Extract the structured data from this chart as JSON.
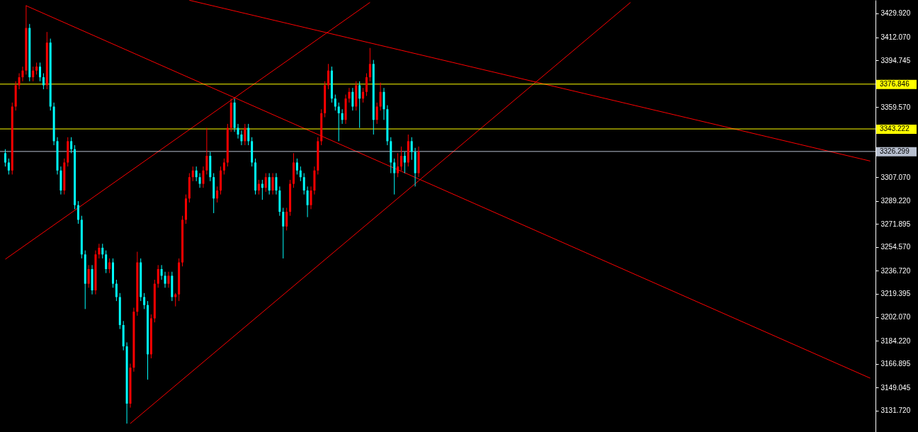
{
  "chart_data": {
    "type": "candlestick",
    "categories": [
      null,
      null,
      null,
      null,
      null,
      null,
      null,
      null,
      null,
      null,
      null,
      null,
      null,
      null,
      null,
      null,
      null,
      null,
      null,
      null,
      null,
      null,
      null,
      null,
      null,
      null,
      null,
      null,
      null,
      null,
      null,
      null,
      null,
      null,
      null,
      null,
      null,
      null,
      null,
      null,
      null,
      null,
      null,
      null,
      null,
      null,
      null,
      null,
      null,
      null,
      null,
      null,
      null,
      null,
      null,
      null,
      null,
      null,
      null,
      null,
      null,
      null,
      null,
      null,
      null,
      null,
      null,
      null,
      null,
      null,
      null,
      null,
      null,
      null,
      null,
      null,
      null,
      null,
      null,
      null,
      null,
      null,
      null,
      null,
      null,
      null,
      null,
      null,
      null,
      null,
      null,
      null,
      null,
      null,
      null,
      null,
      null,
      null,
      null,
      null,
      null,
      null,
      null,
      null,
      null,
      null,
      null,
      null,
      null,
      null,
      null,
      null,
      null,
      null,
      null,
      null,
      null,
      null,
      null,
      null,
      null,
      null,
      null,
      null,
      null,
      null,
      null,
      null,
      null,
      null,
      null,
      null,
      null,
      null,
      null,
      null,
      null,
      null,
      null,
      null,
      null,
      null,
      null,
      null,
      null,
      null,
      null,
      null,
      null,
      null,
      null,
      null,
      null,
      null,
      null,
      null,
      null,
      null,
      null,
      null,
      null,
      null,
      null,
      null,
      null,
      null,
      null,
      null,
      null,
      null,
      null,
      null,
      null,
      null,
      null,
      null,
      null,
      null,
      null,
      null,
      null,
      null,
      null,
      null,
      null,
      null,
      null,
      null,
      null,
      null,
      null,
      null,
      null,
      null,
      null,
      null,
      null,
      null,
      null,
      null,
      null,
      null,
      null,
      null,
      null,
      null,
      null,
      null,
      null,
      null,
      null,
      null,
      null,
      null,
      null,
      null,
      null,
      null,
      null,
      null,
      null,
      null,
      null,
      null,
      null,
      null,
      null,
      null,
      null,
      null,
      null,
      null,
      null,
      null,
      null,
      null,
      null,
      null,
      null,
      null,
      null,
      null,
      null,
      null,
      null,
      null,
      null,
      null,
      null,
      null
    ],
    "colors": [
      "#00ffff",
      "#00ffff",
      "#ff0000",
      "#ff0000",
      "#ff0000",
      "#ff0000",
      "#ff0000",
      "#00ffff",
      "#ff0000",
      "#ff0000",
      "#00ffff",
      "#00ffff",
      "#ff0000",
      "#00ffff",
      "#00ffff",
      "#00ffff",
      "#00ffff",
      "#ff0000",
      "#ff0000",
      "#00ffff",
      "#00ffff",
      "#00ffff",
      "#00ffff",
      "#00ffff",
      "#ff0000",
      "#00ffff",
      "#ff0000",
      "#ff0000",
      "#00ffff",
      "#00ffff",
      "#ff0000",
      "#00ffff",
      "#00ffff",
      "#00ffff",
      "#00ffff",
      "#00ffff",
      "#ff0000",
      "#ff0000",
      "#ff0000",
      "#00ffff",
      "#00ffff",
      "#00ffff",
      "#ff0000",
      "#ff0000",
      "#ff0000",
      "#00ffff",
      "#00ffff",
      "#ff0000",
      "#00ffff",
      "#ff0000",
      "#ff0000",
      "#ff0000",
      "#ff0000",
      "#ff0000",
      "#ff0000",
      "#00ffff",
      "#00ffff",
      "#ff0000",
      "#ff0000",
      "#00ffff",
      "#00ffff",
      "#ff0000",
      "#ff0000",
      "#ff0000",
      "#ff0000",
      "#ff0000",
      "#00ffff",
      "#00ffff",
      "#00ffff",
      "#ff0000",
      "#00ffff",
      "#00ffff",
      "#00ffff",
      "#ff0000",
      "#00ffff",
      "#ff0000",
      "#00ffff",
      "#ff0000",
      "#00ffff",
      "#00ffff",
      "#00ffff",
      "#ff0000",
      "#ff0000",
      "#ff0000",
      "#00ffff",
      "#00ffff",
      "#00ffff",
      "#00ffff",
      "#ff0000",
      "#ff0000",
      "#ff0000",
      "#ff0000",
      "#ff0000",
      "#ff0000",
      "#00ffff",
      "#00ffff",
      "#00ffff",
      "#00ffff",
      "#ff0000",
      "#ff0000",
      "#00ffff",
      "#ff0000",
      "#00ffff",
      "#ff0000",
      "#ff0000",
      "#ff0000",
      "#00ffff",
      "#ff0000",
      "#ff0000",
      "#00ffff",
      "#00ffff",
      "#00ffff",
      "#00ffff",
      "#ff0000",
      "#ff0000",
      "#00ffff",
      "#ff0000",
      "#00ffff",
      "#00ffff",
      "#ff0000",
      null,
      null,
      null,
      null,
      null,
      null,
      null,
      null,
      null,
      null,
      null,
      null,
      null,
      null,
      null,
      null,
      null,
      null,
      null,
      null,
      null,
      null,
      null,
      null,
      null,
      null,
      null,
      null,
      null,
      null,
      null,
      null,
      null,
      null,
      null,
      null,
      null,
      null,
      null,
      null,
      null,
      null,
      null,
      null,
      null,
      null,
      null,
      null,
      null,
      null,
      null,
      null,
      null,
      null,
      null,
      null,
      null,
      null,
      null,
      null,
      null,
      null,
      null,
      null,
      null,
      null,
      null,
      null,
      null,
      null,
      null,
      null,
      null,
      null,
      null,
      null,
      null,
      null,
      null,
      null,
      null,
      null,
      null,
      null,
      null,
      null,
      null,
      null,
      null,
      null,
      null,
      null,
      null,
      null,
      null,
      null,
      null,
      null,
      null,
      null,
      null,
      null,
      null,
      null,
      null,
      null,
      null,
      null,
      null,
      null,
      null,
      null,
      null,
      null,
      null,
      null,
      null,
      null,
      null,
      null,
      null,
      null,
      null,
      null,
      null,
      null,
      null,
      null,
      null,
      null
    ],
    "ohlc": [
      [
        3325,
        3328,
        3315,
        3318
      ],
      [
        3318,
        3321,
        3309,
        3312
      ],
      [
        3312,
        3363,
        3309,
        3360
      ],
      [
        3360,
        3379,
        3357,
        3376
      ],
      [
        3376,
        3385,
        3373,
        3382
      ],
      [
        3382,
        3390,
        3379,
        3387
      ],
      [
        3387,
        3436,
        3384,
        3419
      ],
      [
        3419,
        3422,
        3379,
        3382
      ],
      [
        3382,
        3390,
        3379,
        3387
      ],
      [
        3387,
        3393,
        3384,
        3390
      ],
      [
        3390,
        3393,
        3379,
        3382
      ],
      [
        3382,
        3385,
        3373,
        3376
      ],
      [
        3376,
        3416,
        3373,
        3408
      ],
      [
        3408,
        3411,
        3357,
        3360
      ],
      [
        3360,
        3363,
        3331,
        3334
      ],
      [
        3334,
        3337,
        3309,
        3312
      ],
      [
        3312,
        3315,
        3294,
        3297
      ],
      [
        3297,
        3321,
        3294,
        3318
      ],
      [
        3318,
        3337,
        3315,
        3334
      ],
      [
        3334,
        3337,
        3325,
        3328
      ],
      [
        3328,
        3331,
        3283,
        3286
      ],
      [
        3286,
        3289,
        3272,
        3275
      ],
      [
        3275,
        3278,
        3246,
        3249
      ],
      [
        3249,
        3252,
        3208,
        3227
      ],
      [
        3227,
        3241,
        3224,
        3238
      ],
      [
        3238,
        3241,
        3219,
        3222
      ],
      [
        3222,
        3252,
        3219,
        3249
      ],
      [
        3249,
        3257,
        3246,
        3254
      ],
      [
        3254,
        3257,
        3246,
        3249
      ],
      [
        3249,
        3252,
        3235,
        3238
      ],
      [
        3238,
        3246,
        3235,
        3243
      ],
      [
        3243,
        3246,
        3224,
        3227
      ],
      [
        3227,
        3230,
        3214,
        3217
      ],
      [
        3217,
        3220,
        3193,
        3196
      ],
      [
        3196,
        3199,
        3177,
        3180
      ],
      [
        3180,
        3183,
        3122,
        3137
      ],
      [
        3137,
        3167,
        3134,
        3164
      ],
      [
        3164,
        3209,
        3161,
        3206
      ],
      [
        3206,
        3251,
        3203,
        3243
      ],
      [
        3243,
        3246,
        3214,
        3217
      ],
      [
        3217,
        3220,
        3208,
        3211
      ],
      [
        3211,
        3214,
        3155,
        3174
      ],
      [
        3174,
        3204,
        3171,
        3201
      ],
      [
        3201,
        3230,
        3198,
        3227
      ],
      [
        3227,
        3241,
        3224,
        3238
      ],
      [
        3238,
        3241,
        3230,
        3233
      ],
      [
        3233,
        3236,
        3224,
        3227
      ],
      [
        3227,
        3236,
        3224,
        3233
      ],
      [
        3233,
        3236,
        3214,
        3217
      ],
      [
        3217,
        3220,
        3210,
        3219
      ],
      [
        3219,
        3246,
        3214,
        3243
      ],
      [
        3243,
        3278,
        3240,
        3275
      ],
      [
        3275,
        3294,
        3272,
        3291
      ],
      [
        3291,
        3310,
        3288,
        3307
      ],
      [
        3307,
        3315,
        3304,
        3312
      ],
      [
        3312,
        3315,
        3304,
        3307
      ],
      [
        3307,
        3310,
        3299,
        3302
      ],
      [
        3302,
        3315,
        3299,
        3312
      ],
      [
        3312,
        3344,
        3309,
        3323
      ],
      [
        3323,
        3326,
        3304,
        3307
      ],
      [
        3307,
        3310,
        3280,
        3291
      ],
      [
        3291,
        3300,
        3288,
        3297
      ],
      [
        3297,
        3315,
        3294,
        3312
      ],
      [
        3312,
        3321,
        3309,
        3318
      ],
      [
        3318,
        3347,
        3315,
        3344
      ],
      [
        3344,
        3366,
        3341,
        3363
      ],
      [
        3363,
        3366,
        3341,
        3344
      ],
      [
        3344,
        3347,
        3336,
        3339
      ],
      [
        3339,
        3342,
        3331,
        3334
      ],
      [
        3334,
        3347,
        3331,
        3344
      ],
      [
        3344,
        3347,
        3331,
        3334
      ],
      [
        3334,
        3337,
        3315,
        3318
      ],
      [
        3318,
        3321,
        3294,
        3297
      ],
      [
        3297,
        3305,
        3294,
        3302
      ],
      [
        3302,
        3305,
        3290,
        3299
      ],
      [
        3299,
        3310,
        3296,
        3307
      ],
      [
        3307,
        3310,
        3294,
        3297
      ],
      [
        3297,
        3310,
        3294,
        3307
      ],
      [
        3307,
        3310,
        3294,
        3297
      ],
      [
        3297,
        3300,
        3278,
        3281
      ],
      [
        3281,
        3284,
        3246,
        3270
      ],
      [
        3270,
        3284,
        3267,
        3281
      ],
      [
        3281,
        3305,
        3278,
        3302
      ],
      [
        3302,
        3325,
        3299,
        3318
      ],
      [
        3318,
        3321,
        3309,
        3312
      ],
      [
        3312,
        3315,
        3304,
        3307
      ],
      [
        3307,
        3310,
        3294,
        3297
      ],
      [
        3297,
        3300,
        3277,
        3286
      ],
      [
        3286,
        3300,
        3283,
        3297
      ],
      [
        3297,
        3315,
        3294,
        3312
      ],
      [
        3312,
        3337,
        3309,
        3334
      ],
      [
        3334,
        3358,
        3331,
        3355
      ],
      [
        3355,
        3379,
        3352,
        3376
      ],
      [
        3376,
        3392,
        3373,
        3387
      ],
      [
        3387,
        3390,
        3363,
        3366
      ],
      [
        3366,
        3369,
        3357,
        3360
      ],
      [
        3360,
        3363,
        3334,
        3355
      ],
      [
        3355,
        3358,
        3347,
        3350
      ],
      [
        3350,
        3369,
        3347,
        3366
      ],
      [
        3366,
        3374,
        3363,
        3371
      ],
      [
        3371,
        3374,
        3357,
        3360
      ],
      [
        3360,
        3379,
        3357,
        3376
      ],
      [
        3376,
        3379,
        3344,
        3366
      ],
      [
        3366,
        3374,
        3363,
        3371
      ],
      [
        3371,
        3385,
        3368,
        3382
      ],
      [
        3382,
        3404,
        3379,
        3392
      ],
      [
        3392,
        3395,
        3339,
        3350
      ],
      [
        3350,
        3363,
        3347,
        3360
      ],
      [
        3360,
        3378,
        3357,
        3371
      ],
      [
        3371,
        3374,
        3350,
        3358
      ],
      [
        3358,
        3361,
        3331,
        3334
      ],
      [
        3334,
        3337,
        3310,
        3318
      ],
      [
        3318,
        3321,
        3294,
        3310
      ],
      [
        3310,
        3325,
        3307,
        3315
      ],
      [
        3315,
        3330,
        3312,
        3323
      ],
      [
        3323,
        3326,
        3310,
        3318
      ],
      [
        3318,
        3339,
        3315,
        3334
      ],
      [
        3334,
        3337,
        3320,
        3326
      ],
      [
        3326,
        3329,
        3300,
        3310
      ],
      [
        3310,
        3330,
        3307,
        3326
      ],
      null,
      null,
      null,
      null,
      null,
      null,
      null,
      null,
      null,
      null,
      null,
      null,
      null,
      null,
      null,
      null,
      null,
      null,
      null,
      null,
      null,
      null,
      null,
      null,
      null,
      null,
      null,
      null,
      null,
      null,
      null,
      null,
      null,
      null,
      null,
      null,
      null,
      null,
      null,
      null,
      null,
      null,
      null,
      null,
      null,
      null,
      null,
      null,
      null,
      null,
      null,
      null,
      null,
      null,
      null,
      null,
      null,
      null,
      null,
      null,
      null,
      null,
      null,
      null,
      null,
      null,
      null,
      null,
      null,
      null,
      null,
      null,
      null,
      null,
      null,
      null,
      null,
      null,
      null,
      null,
      null,
      null,
      null,
      null,
      null,
      null,
      null,
      null,
      null,
      null,
      null,
      null,
      null,
      null,
      null,
      null,
      null,
      null,
      null,
      null,
      null,
      null,
      null,
      null,
      null,
      null,
      null,
      null,
      null,
      null,
      null,
      null,
      null,
      null,
      null,
      null,
      null,
      null,
      null,
      null,
      null,
      null,
      null,
      null,
      null,
      null,
      null,
      null,
      null,
      null
    ],
    "series": [
      {
        "type": "line",
        "color": "#ff0000",
        "values": [
          null,
          null,
          null,
          null,
          null,
          null,
          3435.7,
          null,
          null,
          null,
          null,
          null,
          null,
          null,
          null,
          null,
          null,
          null,
          null,
          null,
          null,
          null,
          null,
          null,
          null,
          null,
          null,
          null,
          null,
          null,
          null,
          null,
          null,
          null,
          null,
          null,
          null,
          null,
          null,
          null,
          null,
          null,
          null,
          null,
          null,
          null,
          null,
          null,
          null,
          null,
          null,
          null,
          null,
          null,
          null,
          null,
          null,
          null,
          null,
          null,
          null,
          null,
          null,
          null,
          null,
          null,
          null,
          null,
          null,
          null,
          null,
          null,
          null,
          null,
          null,
          null,
          null,
          null,
          null,
          null,
          null,
          null,
          null,
          null,
          null,
          null,
          null,
          null,
          null,
          null,
          null,
          null,
          null,
          null,
          null,
          null,
          null,
          null,
          null,
          null,
          null,
          null,
          null,
          null,
          null,
          null,
          null,
          null,
          null,
          null,
          null,
          null,
          null,
          null,
          null,
          null,
          null,
          null,
          null,
          null,
          null,
          null,
          null,
          null,
          null,
          null,
          null,
          null,
          null,
          null,
          null,
          null,
          null,
          null,
          null,
          null,
          null,
          null,
          null,
          null,
          null,
          null,
          null,
          null,
          null,
          null,
          null,
          null,
          null,
          null,
          null,
          null,
          null,
          null,
          null,
          null,
          null,
          null,
          null,
          null,
          null,
          null,
          null,
          null,
          null,
          null,
          null,
          null,
          null,
          null,
          null,
          null,
          null,
          null,
          null,
          null,
          null,
          null,
          null,
          null,
          null,
          null,
          null,
          null,
          null,
          null,
          null,
          null,
          null,
          null,
          null,
          null,
          null,
          null,
          null,
          null,
          null,
          null,
          null,
          null,
          null,
          null,
          null,
          null,
          null,
          null,
          null,
          null,
          null,
          null,
          null,
          null,
          null,
          null,
          null,
          null,
          null,
          null,
          null,
          null,
          null,
          null,
          null,
          null,
          null,
          null,
          null,
          null,
          null,
          null,
          null,
          null,
          null,
          null,
          null,
          null,
          null,
          null,
          null,
          null,
          null,
          null,
          null,
          null,
          null,
          null,
          null,
          null,
          null,
          3156.1
        ]
      },
      {
        "type": "line",
        "color": "#ff0000",
        "values": [
          null,
          null,
          null,
          null,
          null,
          null,
          null,
          null,
          null,
          null,
          null,
          null,
          null,
          null,
          null,
          null,
          null,
          null,
          null,
          null,
          null,
          null,
          null,
          null,
          null,
          null,
          null,
          null,
          null,
          null,
          null,
          null,
          null,
          null,
          null,
          null,
          null,
          null,
          null,
          null,
          null,
          null,
          null,
          null,
          null,
          null,
          null,
          null,
          null,
          null,
          null,
          null,
          null,
          3439.8,
          null,
          null,
          null,
          null,
          null,
          null,
          null,
          null,
          null,
          null,
          null,
          null,
          null,
          null,
          null,
          null,
          null,
          null,
          null,
          null,
          null,
          null,
          null,
          null,
          null,
          null,
          null,
          null,
          null,
          null,
          null,
          null,
          null,
          null,
          null,
          null,
          null,
          null,
          null,
          null,
          null,
          null,
          null,
          null,
          null,
          null,
          null,
          null,
          null,
          null,
          null,
          null,
          null,
          null,
          null,
          null,
          null,
          null,
          null,
          null,
          null,
          null,
          null,
          null,
          null,
          null,
          null,
          null,
          null,
          null,
          null,
          null,
          null,
          null,
          null,
          null,
          null,
          null,
          null,
          null,
          null,
          null,
          null,
          null,
          null,
          null,
          null,
          null,
          null,
          null,
          null,
          null,
          null,
          null,
          null,
          null,
          null,
          null,
          null,
          null,
          null,
          null,
          null,
          null,
          null,
          null,
          null,
          null,
          null,
          null,
          null,
          null,
          null,
          null,
          null,
          null,
          null,
          null,
          null,
          null,
          null,
          null,
          null,
          null,
          null,
          null,
          null,
          null,
          null,
          null,
          null,
          null,
          null,
          null,
          null,
          null,
          null,
          null,
          null,
          null,
          null,
          null,
          null,
          null,
          null,
          null,
          null,
          null,
          null,
          null,
          null,
          null,
          null,
          null,
          null,
          null,
          null,
          null,
          null,
          null,
          null,
          null,
          null,
          null,
          null,
          null,
          null,
          null,
          null,
          null,
          null,
          null,
          null,
          null,
          null,
          null,
          null,
          null,
          null,
          null,
          null,
          null,
          null,
          null,
          null,
          null,
          null,
          null,
          null,
          null,
          null,
          null,
          null,
          null,
          null,
          3319.1
        ]
      },
      {
        "type": "line",
        "color": "#ff0000",
        "values": [
          3245.4,
          null,
          null,
          null,
          null,
          null,
          null,
          null,
          null,
          null,
          null,
          null,
          null,
          null,
          null,
          null,
          null,
          null,
          null,
          null,
          null,
          null,
          null,
          null,
          null,
          null,
          null,
          null,
          null,
          null,
          null,
          null,
          null,
          null,
          null,
          null,
          null,
          null,
          null,
          null,
          null,
          null,
          null,
          null,
          null,
          null,
          null,
          null,
          null,
          null,
          null,
          null,
          null,
          null,
          null,
          null,
          null,
          null,
          null,
          null,
          null,
          null,
          null,
          null,
          null,
          null,
          null,
          null,
          null,
          null,
          null,
          null,
          null,
          null,
          null,
          null,
          null,
          null,
          null,
          null,
          null,
          null,
          null,
          null,
          null,
          null,
          null,
          null,
          null,
          null,
          null,
          null,
          null,
          null,
          null,
          null,
          null,
          null,
          null,
          null,
          null,
          null,
          null,
          null,
          null,
          3438.2,
          null,
          null,
          null,
          null,
          null,
          null,
          null,
          null,
          null,
          null,
          null,
          null,
          null,
          null,
          null,
          null,
          null,
          null,
          null,
          null,
          null,
          null,
          null,
          null,
          null,
          null,
          null,
          null,
          null,
          null,
          null,
          null,
          null,
          null,
          null,
          null,
          null,
          null,
          null,
          null,
          null,
          null,
          null,
          null,
          null,
          null,
          null,
          null,
          null,
          null,
          null,
          null,
          null,
          null,
          null,
          null,
          null,
          null,
          null,
          null,
          null,
          null,
          null,
          null,
          null,
          null,
          null,
          null,
          null,
          null,
          null,
          null,
          null,
          null,
          null,
          null,
          null,
          null,
          null,
          null,
          null,
          null,
          null,
          null,
          null,
          null,
          null,
          null,
          null,
          null,
          null,
          null,
          null,
          null,
          null,
          null,
          null,
          null,
          null,
          null,
          null,
          null,
          null,
          null,
          null,
          null,
          null,
          null,
          null,
          null,
          null,
          null,
          null,
          null,
          null,
          null,
          null,
          null,
          null,
          null,
          null,
          null,
          null,
          null,
          null,
          null,
          null,
          null,
          null,
          null,
          null,
          null,
          null,
          null,
          null,
          null,
          null,
          null,
          null,
          null,
          null,
          null,
          null,
          null
        ]
      },
      {
        "type": "line",
        "color": "#ff0000",
        "values": [
          null,
          null,
          null,
          null,
          null,
          null,
          null,
          null,
          null,
          null,
          null,
          null,
          null,
          null,
          null,
          null,
          null,
          null,
          null,
          null,
          null,
          null,
          null,
          null,
          null,
          null,
          null,
          null,
          null,
          null,
          null,
          null,
          null,
          null,
          null,
          null,
          3122.1,
          null,
          null,
          null,
          null,
          null,
          null,
          null,
          null,
          null,
          null,
          null,
          null,
          null,
          null,
          null,
          null,
          null,
          null,
          null,
          null,
          null,
          null,
          null,
          null,
          null,
          null,
          null,
          null,
          null,
          null,
          null,
          null,
          null,
          null,
          null,
          null,
          null,
          null,
          null,
          null,
          null,
          null,
          null,
          null,
          null,
          null,
          null,
          null,
          null,
          null,
          null,
          null,
          null,
          null,
          null,
          null,
          null,
          null,
          null,
          null,
          null,
          null,
          null,
          null,
          null,
          null,
          null,
          null,
          null,
          null,
          null,
          null,
          null,
          null,
          null,
          null,
          null,
          null,
          null,
          null,
          null,
          null,
          null,
          null,
          null,
          null,
          null,
          null,
          null,
          null,
          null,
          null,
          null,
          null,
          null,
          null,
          null,
          null,
          null,
          null,
          null,
          null,
          null,
          null,
          null,
          null,
          null,
          null,
          null,
          null,
          null,
          null,
          null,
          null,
          null,
          null,
          null,
          null,
          null,
          null,
          null,
          null,
          null,
          null,
          null,
          null,
          null,
          null,
          null,
          null,
          null,
          null,
          null,
          null,
          null,
          null,
          null,
          null,
          null,
          null,
          null,
          null,
          null,
          3438.2,
          null,
          null,
          null,
          null,
          null,
          null,
          null,
          null,
          null,
          null,
          null,
          null,
          null,
          null,
          null,
          null,
          null,
          null,
          null,
          null,
          null,
          null,
          null,
          null,
          null,
          null,
          null,
          null,
          null,
          null,
          null,
          null,
          null,
          null,
          null,
          null,
          null,
          null,
          null,
          null,
          null,
          null,
          null,
          null,
          null,
          null,
          null,
          null,
          null,
          null,
          null,
          null,
          null,
          null,
          null,
          null,
          null,
          null,
          null,
          null,
          null,
          null,
          null,
          null,
          null,
          null,
          null,
          null,
          null
        ]
      }
    ],
    "ref_lines": [
      {
        "axis": "y",
        "value": 3376.846,
        "label": "3376.846",
        "color": "#ffff00"
      },
      {
        "axis": "y",
        "value": 3343.222,
        "label": "3343.222",
        "color": "#ffff00"
      },
      {
        "axis": "y",
        "value": 3326.299,
        "label": "3326.299",
        "color": "#b8c0d0"
      }
    ],
    "ylim": [
      3115.7,
      3440.0
    ],
    "yticks": [
      {
        "value": 3131.72,
        "label": "3131.720"
      },
      {
        "value": 3149.045,
        "label": "3149.045"
      },
      {
        "value": 3166.895,
        "label": "3166.895"
      },
      {
        "value": 3184.22,
        "label": "3184.220"
      },
      {
        "value": 3202.07,
        "label": "3202.070"
      },
      {
        "value": 3219.395,
        "label": "3219.395"
      },
      {
        "value": 3236.72,
        "label": "3236.720"
      },
      {
        "value": 3254.57,
        "label": "3254.570"
      },
      {
        "value": 3271.895,
        "label": "3271.895"
      },
      {
        "value": 3289.22,
        "label": "3289.220"
      },
      {
        "value": 3307.07,
        "label": "3307.070"
      },
      {
        "value": 3359.57,
        "label": "3359.570"
      },
      {
        "value": 3394.745,
        "label": "3394.745"
      },
      {
        "value": 3412.07,
        "label": "3412.070"
      },
      {
        "value": 3429.92,
        "label": "3429.920"
      }
    ],
    "tick_labels": "y",
    "grid": false
  }
}
